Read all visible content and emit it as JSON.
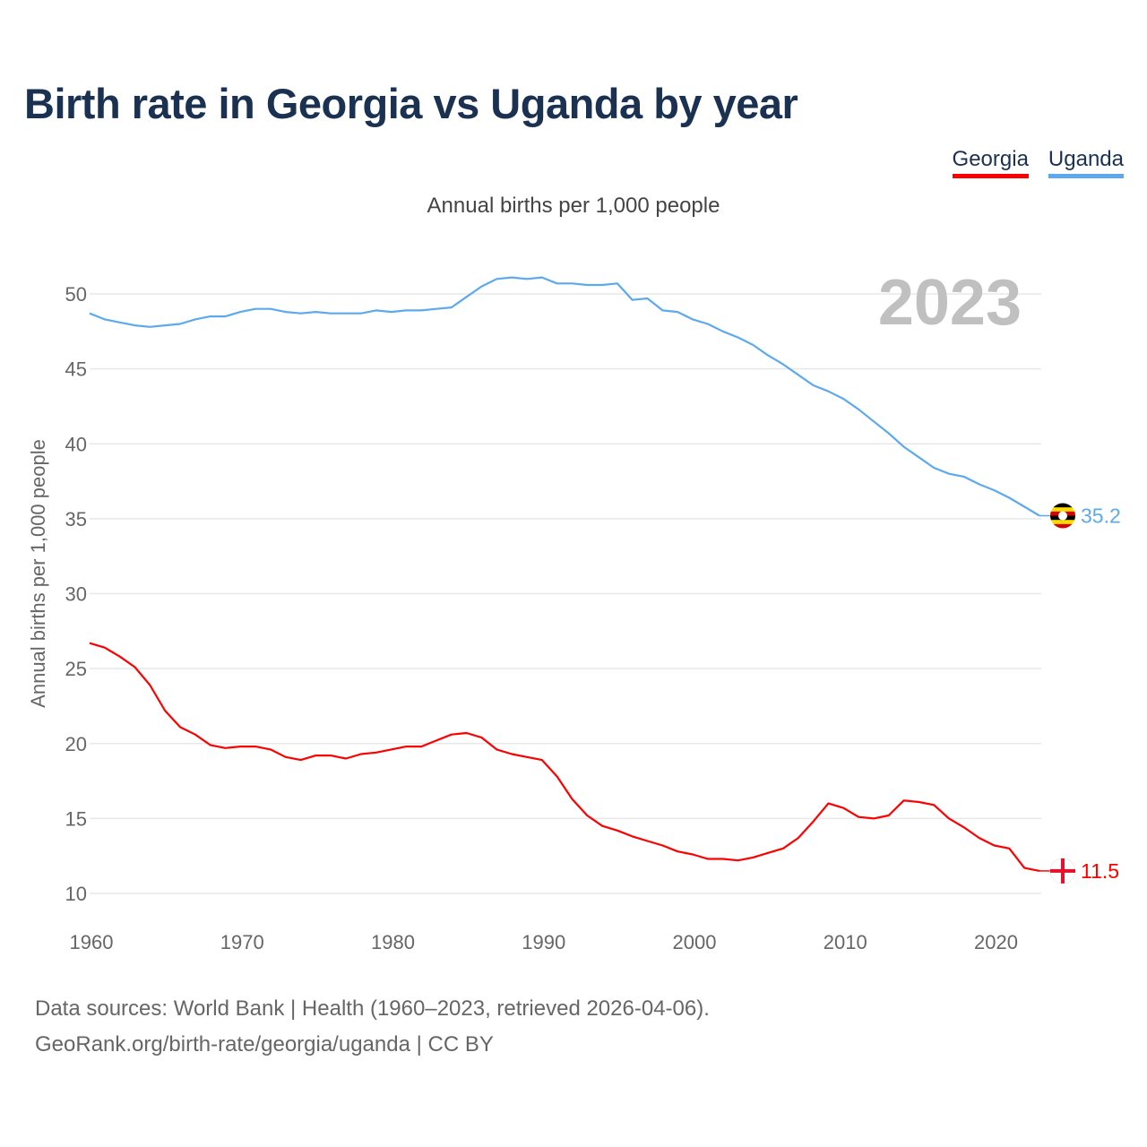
{
  "title": "Birth rate in Georgia vs Uganda by year",
  "subtitle": "Annual births per 1,000 people",
  "footer": {
    "line1": "Data sources: World Bank | Health (1960–2023, retrieved 2026-04-06).",
    "line2": "GeoRank.org/birth-rate/georgia/uganda | CC BY"
  },
  "chart_data": {
    "type": "line",
    "title": "Birth rate in Georgia vs Uganda by year",
    "ylabel": "Annual births per 1,000 people",
    "xlabel": "",
    "year_label": "2023",
    "xlim": [
      1960,
      2023
    ],
    "ylim": [
      10,
      50
    ],
    "xticks": [
      1960,
      1970,
      1980,
      1990,
      2000,
      2010,
      2020
    ],
    "yticks": [
      10,
      15,
      20,
      25,
      30,
      35,
      40,
      45,
      50
    ],
    "grid": true,
    "legend_placement": "top-right",
    "x_start": 1960,
    "series": [
      {
        "name": "Georgia",
        "color": "#ff0000",
        "end_label": "11.5",
        "flag": "georgia-flag",
        "values": [
          26.7,
          26.4,
          25.8,
          25.1,
          23.9,
          22.2,
          21.1,
          20.6,
          19.9,
          19.7,
          19.8,
          19.8,
          19.6,
          19.1,
          18.9,
          19.2,
          19.2,
          19.0,
          19.3,
          19.4,
          19.6,
          19.8,
          19.8,
          20.2,
          20.6,
          20.7,
          20.4,
          19.6,
          19.3,
          19.1,
          18.9,
          17.8,
          16.3,
          15.2,
          14.5,
          14.2,
          13.8,
          13.5,
          13.2,
          12.8,
          12.6,
          12.3,
          12.3,
          12.2,
          12.4,
          12.7,
          13.0,
          13.7,
          14.8,
          16.0,
          15.7,
          15.1,
          15.0,
          15.2,
          16.2,
          16.1,
          15.9,
          15.0,
          14.4,
          13.7,
          13.2,
          13.0,
          11.7,
          11.5
        ]
      },
      {
        "name": "Uganda",
        "color": "#5da9ee",
        "end_label": "35.2",
        "flag": "uganda-flag",
        "values": [
          48.7,
          48.3,
          48.1,
          47.9,
          47.8,
          47.9,
          48.0,
          48.3,
          48.5,
          48.5,
          48.8,
          49.0,
          49.0,
          48.8,
          48.7,
          48.8,
          48.7,
          48.7,
          48.7,
          48.9,
          48.8,
          48.9,
          48.9,
          49.0,
          49.1,
          49.8,
          50.5,
          51.0,
          51.1,
          51.0,
          51.1,
          50.7,
          50.7,
          50.6,
          50.6,
          50.7,
          49.6,
          49.7,
          48.9,
          48.8,
          48.3,
          48.0,
          47.5,
          47.1,
          46.6,
          45.9,
          45.3,
          44.6,
          43.9,
          43.5,
          43.0,
          42.3,
          41.5,
          40.7,
          39.8,
          39.1,
          38.4,
          38.0,
          37.8,
          37.3,
          36.9,
          36.4,
          35.8,
          35.2
        ]
      }
    ]
  }
}
